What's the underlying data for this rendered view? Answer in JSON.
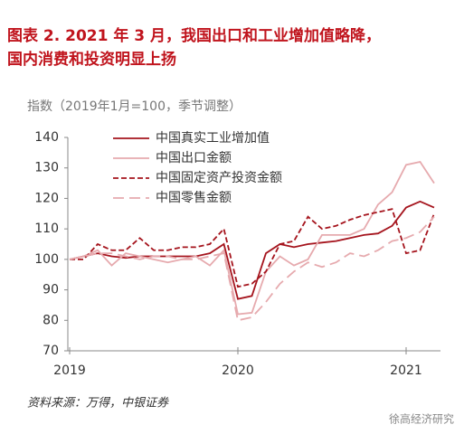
{
  "chart_data": {
    "type": "line",
    "title_lines": [
      "图表 2.  2021 年 3 月，我国出口和工业增加值略降，",
      "国内消费和投资明显上扬"
    ],
    "subtitle": "指数（2019年1月=100，季节调整）",
    "source": "资料来源：万得，中银证券",
    "watermark": "徐高经济研究",
    "categories": [
      "2019",
      null,
      null,
      null,
      null,
      null,
      null,
      null,
      null,
      null,
      null,
      null,
      "2020",
      null,
      null,
      null,
      null,
      null,
      null,
      null,
      null,
      null,
      null,
      null,
      "2021",
      null,
      null
    ],
    "ylim": [
      70,
      140
    ],
    "yticks": [
      70,
      80,
      90,
      100,
      110,
      120,
      130,
      140
    ],
    "legend": "top-left",
    "series": [
      {
        "name": "中国真实工业增加值",
        "color": "#a5141d",
        "style": "solid",
        "values": [
          100,
          101,
          102,
          101,
          100.5,
          101,
          101,
          101,
          101,
          101,
          102,
          105,
          87,
          88,
          102,
          105,
          104,
          105,
          105.5,
          106,
          107,
          108,
          108.5,
          111,
          117,
          119,
          117
        ]
      },
      {
        "name": "中国出口金额",
        "color": "#e6aaae",
        "style": "solid",
        "values": [
          100,
          101,
          103,
          98,
          102,
          101,
          100,
          99,
          100,
          101,
          98,
          103,
          82,
          82.5,
          96,
          101,
          98,
          100,
          108,
          108,
          108,
          110,
          118,
          122,
          131,
          132,
          125
        ]
      },
      {
        "name": "中国固定资产投资金额",
        "color": "#a5141d",
        "style": "dashed",
        "values": [
          100,
          100,
          105,
          103,
          103,
          107,
          103,
          103,
          104,
          104,
          105,
          110,
          91,
          92,
          96,
          105,
          106,
          114,
          110,
          111,
          113,
          114.5,
          115.5,
          116.5,
          102,
          103,
          115
        ]
      },
      {
        "name": "中国零售金额",
        "color": "#e6aaae",
        "style": "longdash",
        "values": [
          100,
          101,
          102,
          102,
          101,
          100,
          101,
          101,
          100,
          100,
          101,
          102,
          80,
          81,
          86,
          92,
          96,
          99,
          97.5,
          99,
          102,
          101,
          103,
          106,
          107,
          109,
          114
        ]
      }
    ]
  }
}
